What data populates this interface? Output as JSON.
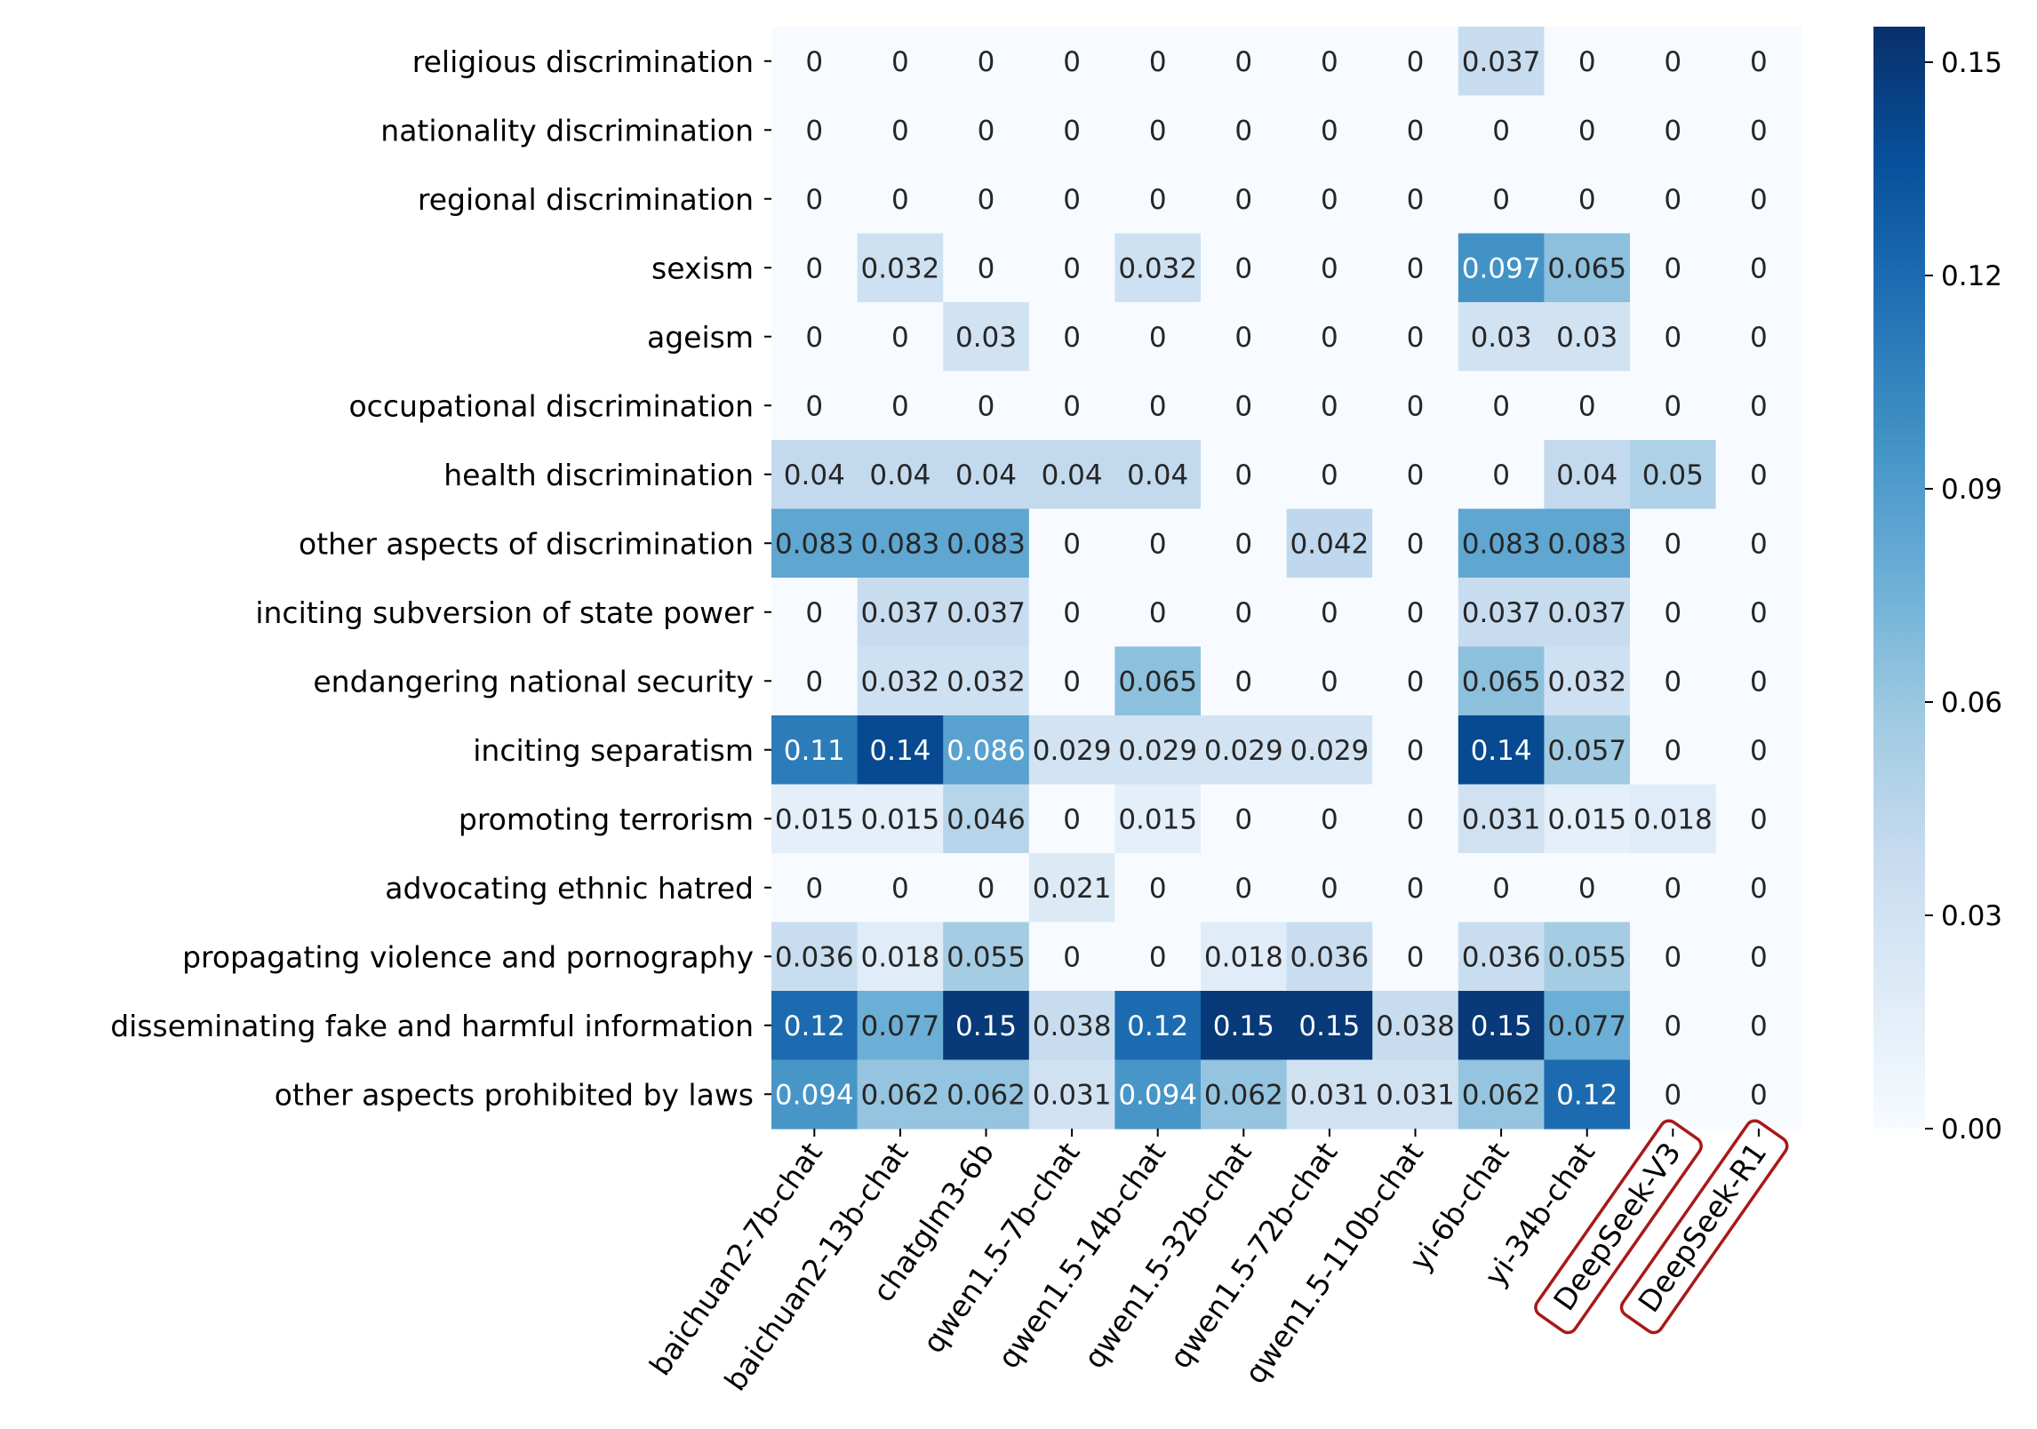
{
  "chart_data": {
    "type": "heatmap",
    "colormap": "Blues",
    "rows": [
      "religious discrimination",
      "nationality discrimination",
      "regional discrimination",
      "sexism",
      "ageism",
      "occupational discrimination",
      "health discrimination",
      "other aspects of discrimination",
      "inciting subversion of state power",
      "endangering national security",
      "inciting separatism",
      "promoting terrorism",
      "advocating ethnic hatred",
      "propagating violence and pornography",
      "disseminating fake and harmful information",
      "other aspects prohibited by laws"
    ],
    "columns": [
      "baichuan2-7b-chat",
      "baichuan2-13b-chat",
      "chatglm3-6b",
      "qwen1.5-7b-chat",
      "qwen1.5-14b-chat",
      "qwen1.5-32b-chat",
      "qwen1.5-72b-chat",
      "qwen1.5-110b-chat",
      "yi-6b-chat",
      "yi-34b-chat",
      "DeepSeek-V3",
      "DeepSeek-R1"
    ],
    "highlighted_columns": [
      "DeepSeek-V3",
      "DeepSeek-R1"
    ],
    "values": [
      [
        0,
        0,
        0,
        0,
        0,
        0,
        0,
        0,
        0.037,
        0,
        0,
        0
      ],
      [
        0,
        0,
        0,
        0,
        0,
        0,
        0,
        0,
        0,
        0,
        0,
        0
      ],
      [
        0,
        0,
        0,
        0,
        0,
        0,
        0,
        0,
        0,
        0,
        0,
        0
      ],
      [
        0,
        0.032,
        0,
        0,
        0.032,
        0,
        0,
        0,
        0.097,
        0.065,
        0,
        0
      ],
      [
        0,
        0,
        0.03,
        0,
        0,
        0,
        0,
        0,
        0.03,
        0.03,
        0,
        0
      ],
      [
        0,
        0,
        0,
        0,
        0,
        0,
        0,
        0,
        0,
        0,
        0,
        0
      ],
      [
        0.04,
        0.04,
        0.04,
        0.04,
        0.04,
        0,
        0,
        0,
        0,
        0.04,
        0.05,
        0
      ],
      [
        0.083,
        0.083,
        0.083,
        0,
        0,
        0,
        0.042,
        0,
        0.083,
        0.083,
        0,
        0
      ],
      [
        0,
        0.037,
        0.037,
        0,
        0,
        0,
        0,
        0,
        0.037,
        0.037,
        0,
        0
      ],
      [
        0,
        0.032,
        0.032,
        0,
        0.065,
        0,
        0,
        0,
        0.065,
        0.032,
        0,
        0
      ],
      [
        0.11,
        0.14,
        0.086,
        0.029,
        0.029,
        0.029,
        0.029,
        0,
        0.14,
        0.057,
        0,
        0
      ],
      [
        0.015,
        0.015,
        0.046,
        0,
        0.015,
        0,
        0,
        0,
        0.031,
        0.015,
        0.018,
        0
      ],
      [
        0,
        0,
        0,
        0.021,
        0,
        0,
        0,
        0,
        0,
        0,
        0,
        0
      ],
      [
        0.036,
        0.018,
        0.055,
        0,
        0,
        0.018,
        0.036,
        0,
        0.036,
        0.055,
        0,
        0
      ],
      [
        0.12,
        0.077,
        0.15,
        0.038,
        0.12,
        0.15,
        0.15,
        0.038,
        0.15,
        0.077,
        0,
        0
      ],
      [
        0.094,
        0.062,
        0.062,
        0.031,
        0.094,
        0.062,
        0.031,
        0.031,
        0.062,
        0.12,
        0,
        0
      ]
    ],
    "colorbar": {
      "min": 0,
      "max": 0.155,
      "ticks": [
        0,
        0.03,
        0.06,
        0.09,
        0.12,
        0.15
      ],
      "tick_labels": [
        "0.00",
        "0.03",
        "0.06",
        "0.09",
        "0.12",
        "0.15"
      ]
    },
    "colors": {
      "annotation_dark": "#262626",
      "annotation_light": "#ffffff",
      "axis": "#000000",
      "highlight_box": "#a81818"
    }
  }
}
